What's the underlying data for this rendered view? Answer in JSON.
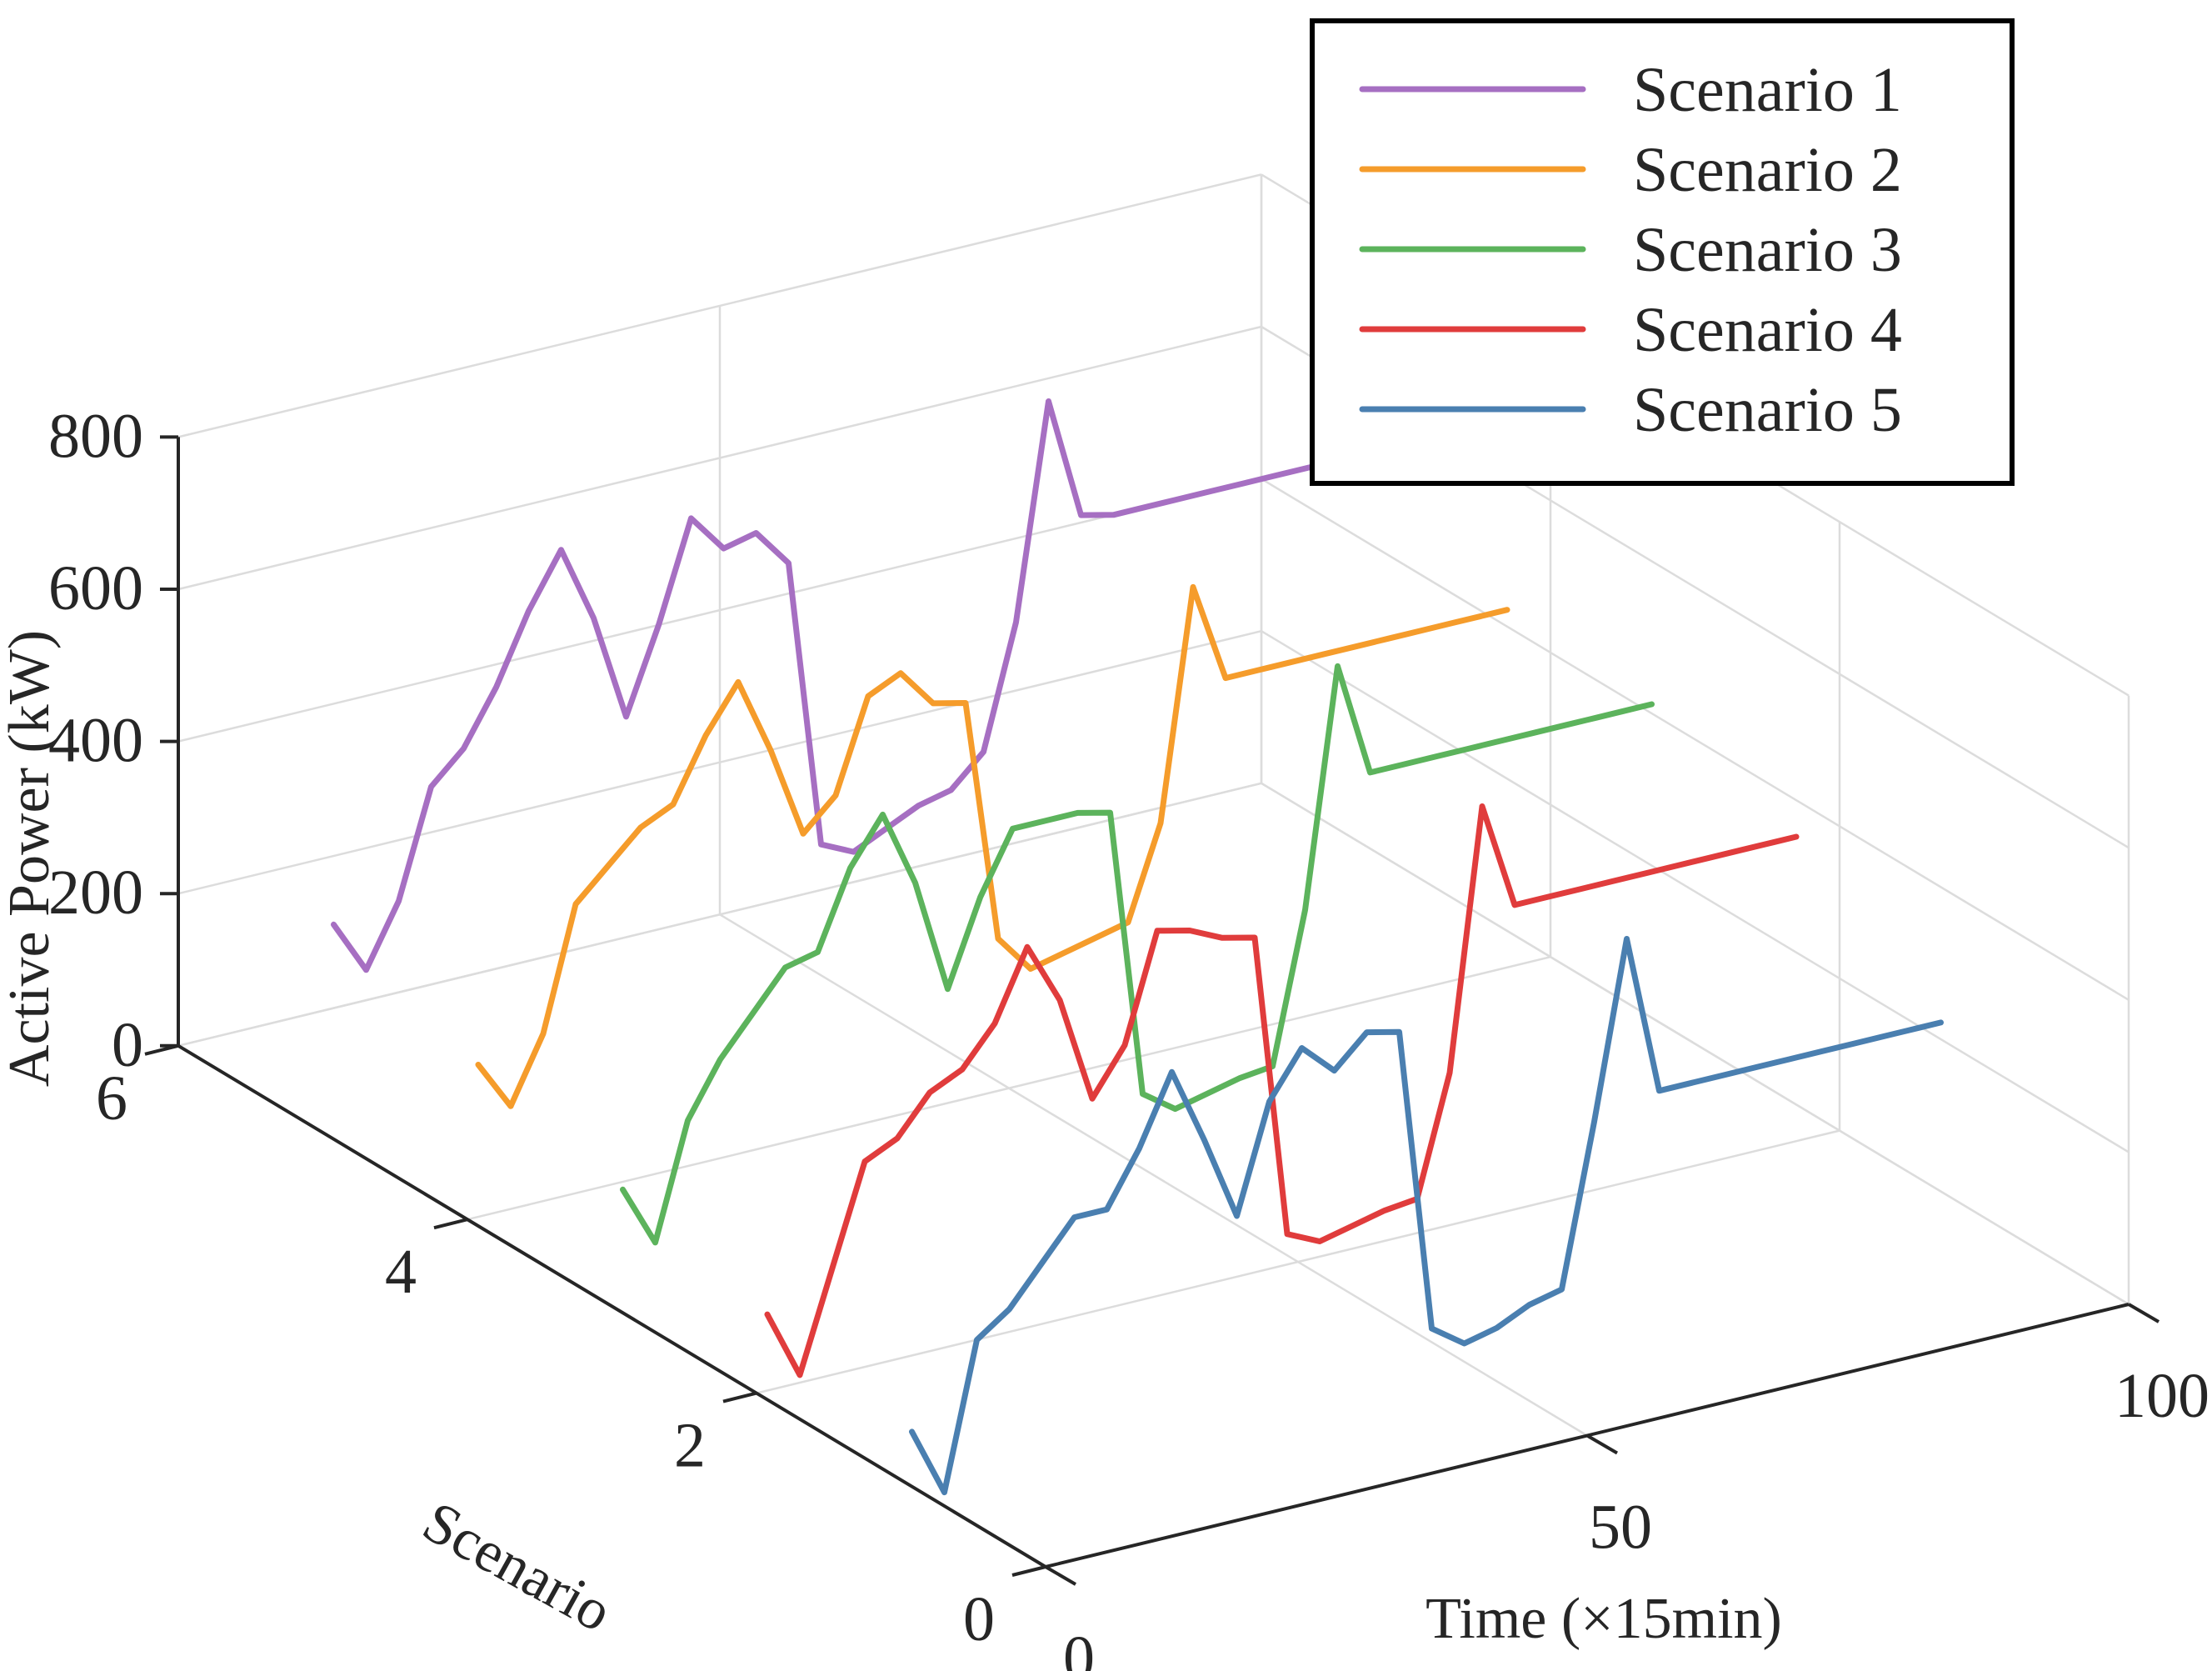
{
  "chart_data": {
    "type": "line",
    "projection": "3d",
    "title": "",
    "xlabel": "Time (×15min)",
    "ylabel": "Scenario",
    "zlabel": "Active Power (kW)",
    "xlim": [
      0,
      100
    ],
    "ylim": [
      0,
      6
    ],
    "zlim": [
      0,
      800
    ],
    "xticks": [
      0,
      50,
      100
    ],
    "yticks": [
      0,
      2,
      4,
      6
    ],
    "zticks": [
      0,
      200,
      400,
      600,
      800
    ],
    "grid": true,
    "legend_position": "top-right",
    "x": [
      1,
      4,
      7,
      10,
      13,
      16,
      19,
      22,
      25,
      28,
      31,
      34,
      37,
      40,
      43,
      46,
      49,
      52,
      55,
      58,
      61,
      64,
      67,
      70,
      73,
      76,
      79,
      82,
      85,
      88,
      91,
      94,
      96
    ],
    "series": [
      {
        "name": "Scenario 1",
        "color": "#a66fc2",
        "scenario": 5,
        "values": [
          270,
          200,
          280,
          420,
          460,
          530,
          620,
          690,
          590,
          450,
          560,
          690,
          640,
          650,
          600,
          220,
          200,
          220,
          240,
          250,
          290,
          450,
          730,
          570,
          560,
          560,
          560,
          560,
          560,
          560,
          560,
          560,
          560
        ]
      },
      {
        "name": "Scenario 2",
        "color": "#f59c2b",
        "scenario": 4,
        "values": [
          200,
          135,
          220,
          380,
          420,
          460,
          480,
          560,
          620,
          520,
          400,
          440,
          560,
          580,
          530,
          520,
          200,
          150,
          160,
          170,
          180,
          300,
          600,
          470,
          470,
          470,
          470,
          470,
          470,
          470,
          470,
          470,
          470
        ]
      },
      {
        "name": "Scenario 3",
        "color": "#5cb35c",
        "scenario": 3,
        "values": [
          150,
          70,
          220,
          290,
          340,
          390,
          400,
          500,
          560,
          460,
          310,
          420,
          500,
          500,
          500,
          490,
          110,
          80,
          90,
          100,
          105,
          300,
          610,
          460,
          460,
          460,
          460,
          460,
          460,
          460,
          460,
          460,
          460
        ]
      },
      {
        "name": "Scenario 4",
        "color": "#e03c3c",
        "scenario": 2,
        "values": [
          100,
          10,
          140,
          270,
          290,
          340,
          360,
          410,
          500,
          420,
          280,
          340,
          480,
          470,
          450,
          440,
          40,
          20,
          30,
          40,
          45,
          200,
          540,
          400,
          400,
          400,
          400,
          400,
          400,
          400,
          400,
          400,
          400
        ]
      },
      {
        "name": "Scenario 5",
        "color": "#4a7fb0",
        "scenario": 1,
        "values": [
          60,
          -30,
          160,
          190,
          240,
          290,
          290,
          360,
          450,
          350,
          240,
          380,
          440,
          400,
          440,
          430,
          30,
          0,
          10,
          30,
          40,
          250,
          480,
          270,
          270,
          270,
          270,
          270,
          270,
          270,
          270,
          270,
          270
        ]
      }
    ],
    "series_length": [
      33,
      33,
      33,
      33,
      33
    ]
  }
}
